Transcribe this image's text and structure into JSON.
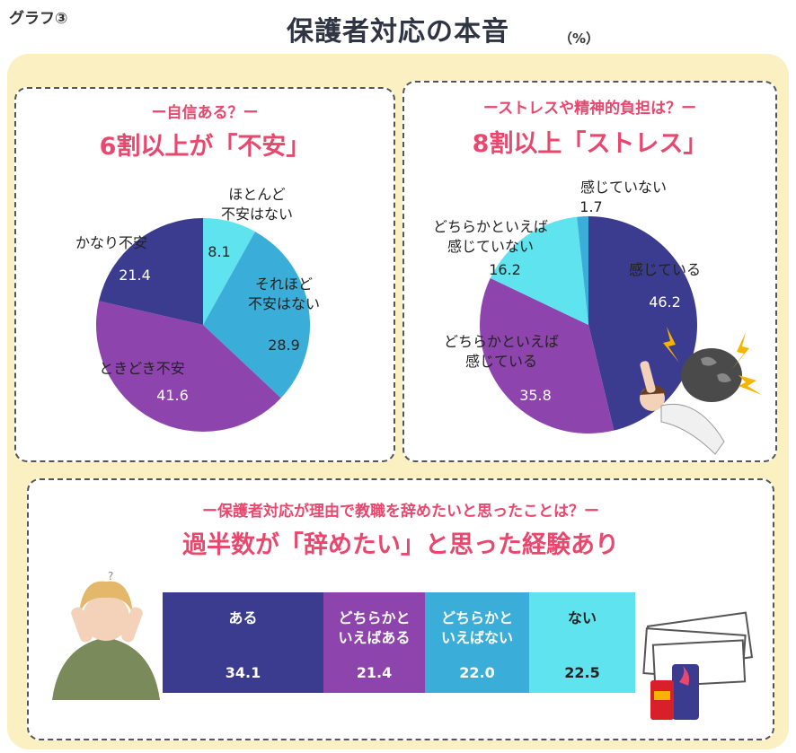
{
  "header": {
    "graph_label": "グラフ③",
    "title": "保護者対応の本音",
    "unit": "（%）"
  },
  "chart_data": [
    {
      "type": "pie",
      "subtitle": "ー自信ある？ー",
      "headline": "6割以上が「不安」",
      "slices": [
        {
          "label": "ほとんど\n不安はない",
          "value": 8.1,
          "color": "#5fe3ef"
        },
        {
          "label": "それほど\n不安はない",
          "value": 28.9,
          "color": "#3aaed8"
        },
        {
          "label": "ときどき不安",
          "value": 41.6,
          "color": "#8e44ad"
        },
        {
          "label": "かなり不安",
          "value": 21.4,
          "color": "#3b3b8f"
        }
      ]
    },
    {
      "type": "pie",
      "subtitle": "ーストレスや精神的負担は？ー",
      "headline": "8割以上「ストレス」",
      "slices": [
        {
          "label": "感じている",
          "value": 46.2,
          "color": "#3b3b8f"
        },
        {
          "label": "どちらかといえば\n感じている",
          "value": 35.8,
          "color": "#8e44ad"
        },
        {
          "label": "どちらかといえば\n感じていない",
          "value": 16.2,
          "color": "#5fe3ef"
        },
        {
          "label": "感じていない",
          "value": 1.7,
          "color": "#3aaed8"
        }
      ]
    },
    {
      "type": "bar",
      "orientation": "horizontal-stacked",
      "subtitle": "ー保護者対応が理由で教職を辞めたいと思ったことは？ー",
      "headline": "過半数が「辞めたい」と思った経験あり",
      "segments": [
        {
          "label": "ある",
          "value": 34.1,
          "color": "#3b3b8f"
        },
        {
          "label": "どちらかと\nいえばある",
          "value": 21.4,
          "color": "#8e44ad"
        },
        {
          "label": "どちらかと\nいえばない",
          "value": 22.0,
          "color": "#3aaed8"
        },
        {
          "label": "ない",
          "value": 22.5,
          "color": "#5fe3ef"
        }
      ]
    }
  ]
}
